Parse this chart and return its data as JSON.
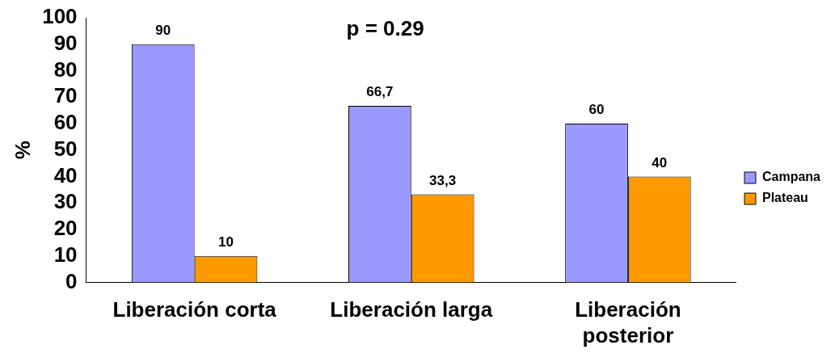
{
  "chart_data": {
    "type": "bar",
    "ylabel": "%",
    "categories": [
      "Liberación corta",
      "Liberación larga",
      "Liberación posterior"
    ],
    "series": [
      {
        "name": "Campana",
        "color": "#9999ff",
        "values": [
          90,
          66.7,
          60
        ],
        "value_labels": [
          "90",
          "66,7",
          "60"
        ]
      },
      {
        "name": "Plateau",
        "color": "#ff9900",
        "values": [
          10,
          33.3,
          40
        ],
        "value_labels": [
          "10",
          "33,3",
          "40"
        ]
      }
    ],
    "ylim": [
      0,
      100
    ],
    "yticks": [
      0,
      10,
      20,
      30,
      40,
      50,
      60,
      70,
      80,
      90,
      100
    ],
    "grid": false,
    "legend": "right",
    "annotations": [
      "p = 0.29"
    ]
  }
}
